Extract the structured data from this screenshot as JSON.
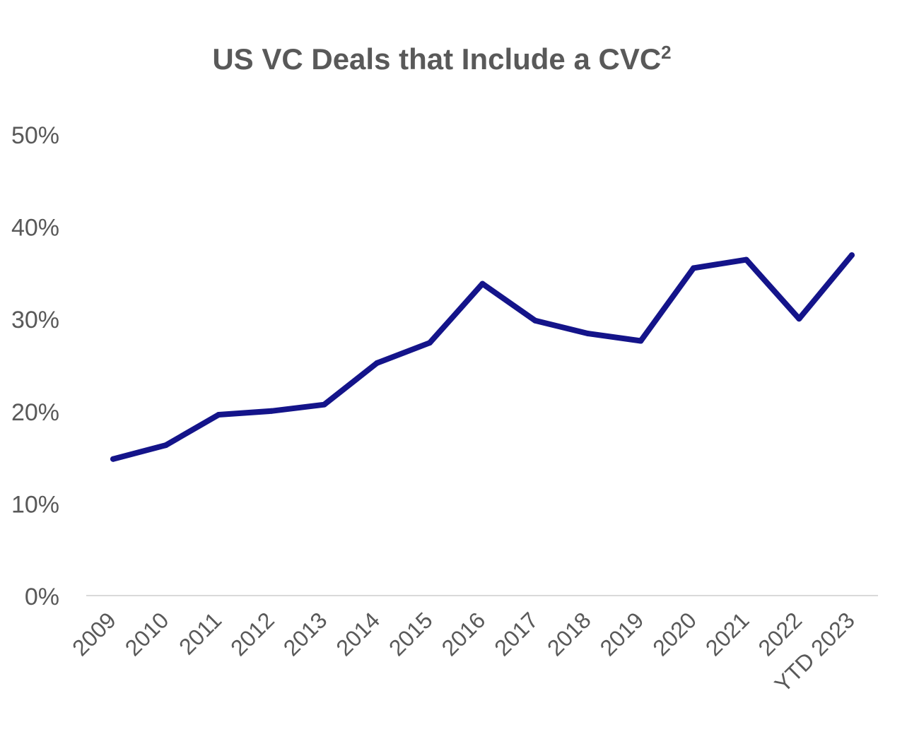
{
  "chart_data": {
    "type": "line",
    "title": "US VC Deals that Include a CVC",
    "title_superscript": "2",
    "xlabel": "",
    "ylabel": "",
    "categories": [
      "2009",
      "2010",
      "2011",
      "2012",
      "2013",
      "2014",
      "2015",
      "2016",
      "2017",
      "2018",
      "2019",
      "2020",
      "2021",
      "2022",
      "YTD 2023"
    ],
    "series": [
      {
        "values": [
          14.8,
          16.3,
          19.6,
          20.0,
          20.7,
          25.2,
          27.4,
          33.8,
          29.8,
          28.4,
          27.6,
          35.5,
          36.4,
          30.0,
          36.9
        ],
        "color": "#14148a"
      }
    ],
    "y_ticks": [
      "0%",
      "10%",
      "20%",
      "30%",
      "40%",
      "50%"
    ],
    "ylim": [
      0,
      50
    ],
    "grid": false,
    "legend": "none"
  }
}
